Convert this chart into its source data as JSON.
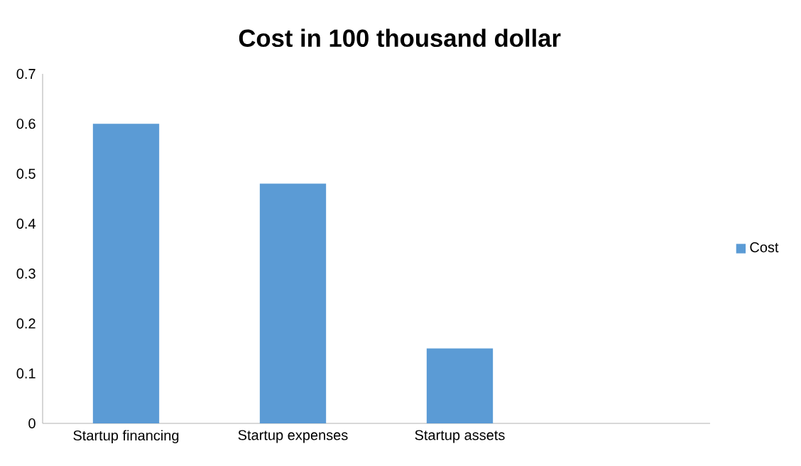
{
  "chart_data": {
    "type": "bar",
    "title": "Cost in 100 thousand dollar",
    "categories": [
      "Startup financing",
      "Startup expenses",
      "Startup assets",
      null
    ],
    "series": [
      {
        "name": "Cost",
        "color": "#5b9bd5",
        "values": [
          0.6,
          0.48,
          0.15,
          null
        ]
      }
    ],
    "ylim": [
      0,
      0.7
    ],
    "yticks": [
      0,
      0.1,
      0.2,
      0.3,
      0.4,
      0.5,
      0.6,
      0.7
    ],
    "legend": "right"
  }
}
